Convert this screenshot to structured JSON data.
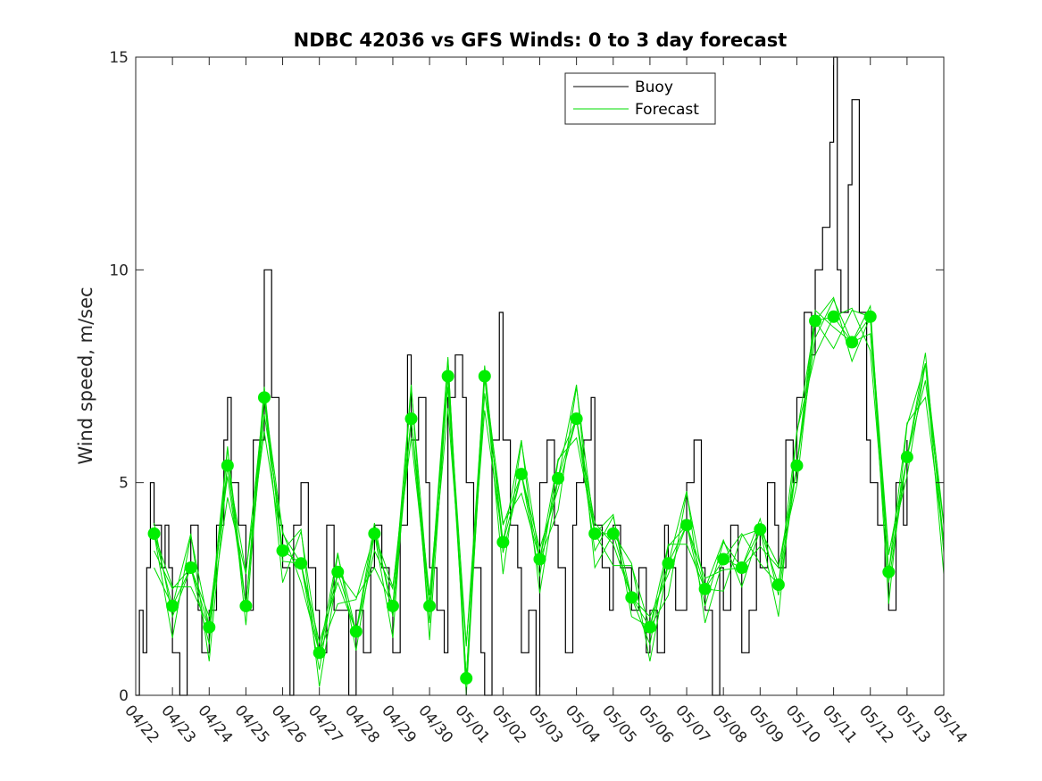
{
  "chart_data": {
    "type": "line",
    "title": "NDBC 42036 vs GFS Winds: 0 to 3 day forecast",
    "xlabel": "",
    "ylabel": "Wind speed, m/sec",
    "ylim": [
      0,
      15
    ],
    "xlim_days": [
      0,
      22
    ],
    "yticks": [
      0,
      5,
      10,
      15
    ],
    "x_tick_labels": [
      "04/22",
      "04/23",
      "04/24",
      "04/25",
      "04/26",
      "04/27",
      "04/28",
      "04/29",
      "04/30",
      "05/01",
      "05/02",
      "05/03",
      "05/04",
      "05/05",
      "05/06",
      "05/07",
      "05/08",
      "05/09",
      "05/10",
      "05/11",
      "05/12",
      "05/13",
      "05/14"
    ],
    "legend": {
      "position": "top-right",
      "entries": [
        "Buoy",
        "Forecast"
      ]
    },
    "colors": {
      "buoy": "#000000",
      "forecast": "#00dd00",
      "marker": "#00ee00",
      "axis": "#262626"
    },
    "series": [
      {
        "name": "Buoy",
        "x_days": [
          0,
          0.1,
          0.2,
          0.3,
          0.4,
          0.5,
          0.6,
          0.7,
          0.8,
          0.9,
          1.0,
          1.2,
          1.4,
          1.5,
          1.7,
          1.8,
          2.0,
          2.2,
          2.4,
          2.5,
          2.6,
          2.8,
          3.0,
          3.2,
          3.5,
          3.7,
          3.9,
          4.0,
          4.2,
          4.3,
          4.5,
          4.7,
          4.9,
          5.0,
          5.2,
          5.4,
          5.6,
          5.8,
          6.0,
          6.2,
          6.4,
          6.5,
          6.7,
          6.9,
          7.0,
          7.2,
          7.4,
          7.5,
          7.7,
          7.9,
          8.0,
          8.2,
          8.4,
          8.5,
          8.7,
          8.9,
          9.0,
          9.2,
          9.4,
          9.5,
          9.7,
          9.9,
          10.0,
          10.2,
          10.4,
          10.5,
          10.7,
          10.9,
          11.0,
          11.2,
          11.4,
          11.5,
          11.7,
          11.9,
          12.0,
          12.2,
          12.4,
          12.5,
          12.7,
          12.9,
          13.0,
          13.2,
          13.4,
          13.5,
          13.7,
          13.9,
          14.0,
          14.2,
          14.4,
          14.5,
          14.7,
          14.9,
          15.0,
          15.2,
          15.4,
          15.5,
          15.7,
          15.9,
          16.0,
          16.2,
          16.4,
          16.5,
          16.7,
          16.9,
          17.0,
          17.2,
          17.4,
          17.5,
          17.7,
          17.9,
          18.0,
          18.2,
          18.4,
          18.5,
          18.7,
          18.9,
          19.0,
          19.1,
          19.2,
          19.4,
          19.5,
          19.7,
          19.9,
          20.0,
          20.2,
          20.4,
          20.5,
          20.7,
          20.9,
          21.0
        ],
        "values": [
          0,
          2,
          1,
          3,
          5,
          4,
          4,
          3,
          4,
          3,
          1,
          0,
          3,
          4,
          2,
          1,
          2,
          4,
          6,
          7,
          5,
          4,
          2,
          6,
          10,
          7,
          4,
          3,
          0,
          4,
          5,
          3,
          2,
          1,
          4,
          2,
          2,
          0,
          2,
          1,
          3,
          4,
          3,
          2,
          1,
          4,
          8,
          6,
          7,
          5,
          3,
          2,
          1,
          7,
          8,
          7,
          5,
          3,
          1,
          0,
          6,
          9,
          6,
          4,
          3,
          1,
          2,
          0,
          5,
          6,
          4,
          3,
          1,
          4,
          5,
          6,
          7,
          4,
          3,
          2,
          4,
          3,
          3,
          2,
          3,
          1,
          2,
          1,
          4,
          3,
          2,
          2,
          5,
          6,
          3,
          2,
          0,
          3,
          2,
          4,
          3,
          1,
          2,
          4,
          3,
          5,
          4,
          3,
          6,
          5,
          7,
          9,
          8,
          10,
          11,
          13,
          15,
          10,
          9,
          12,
          14,
          9,
          6,
          5,
          4,
          3,
          2,
          5,
          4,
          6
        ]
      },
      {
        "name": "Forecast",
        "x_days": [
          0.5,
          1.0,
          1.5,
          2.0,
          2.5,
          3.0,
          3.5,
          4.0,
          4.5,
          5.0,
          5.5,
          6.0,
          6.5,
          7.0,
          7.5,
          8.0,
          8.5,
          9.0,
          9.5,
          10.0,
          10.5,
          11.0,
          11.5,
          12.0,
          12.5,
          13.0,
          13.5,
          14.0,
          14.5,
          15.0,
          15.5,
          16.0,
          16.5,
          17.0,
          17.5,
          18.0,
          18.5,
          19.0,
          19.5,
          20.0,
          20.5,
          21.0,
          21.5,
          22.0
        ],
        "values": [
          3.8,
          2.1,
          3.0,
          1.6,
          5.4,
          2.1,
          7.0,
          3.4,
          3.1,
          1.0,
          2.9,
          1.5,
          3.8,
          2.1,
          6.5,
          2.1,
          7.5,
          0.4,
          7.5,
          3.6,
          5.2,
          3.2,
          5.1,
          6.5,
          3.8,
          3.8,
          2.3,
          1.6,
          3.1,
          4.0,
          2.5,
          3.2,
          3.0,
          3.9,
          2.6,
          5.4,
          8.8,
          8.9,
          8.3,
          8.9,
          2.9,
          5.6,
          7.8,
          3.6
        ]
      },
      {
        "name": "Forecast markers",
        "x_days": [
          0.5,
          1.0,
          1.5,
          2.0,
          2.5,
          3.0,
          3.5,
          4.0,
          4.5,
          5.0,
          5.5,
          6.0,
          6.5,
          7.0,
          7.5,
          8.0,
          8.5,
          9.0,
          9.5,
          10.0,
          10.5,
          11.0,
          11.5,
          12.0,
          12.5,
          13.0,
          13.5,
          14.0,
          14.5,
          15.0,
          15.5,
          16.0,
          16.5,
          17.0,
          17.5,
          18.0,
          18.5,
          19.0,
          19.5,
          20.0,
          20.5,
          21.0
        ],
        "values": [
          3.8,
          2.1,
          3.0,
          1.6,
          5.4,
          2.1,
          7.0,
          3.4,
          3.1,
          1.0,
          2.9,
          1.5,
          3.8,
          2.1,
          6.5,
          2.1,
          7.5,
          0.4,
          7.5,
          3.6,
          5.2,
          3.2,
          5.1,
          6.5,
          3.8,
          3.8,
          2.3,
          1.6,
          3.1,
          4.0,
          2.5,
          3.2,
          3.0,
          3.9,
          2.6,
          5.4,
          8.8,
          8.9,
          8.3,
          8.9,
          2.9,
          5.6
        ]
      }
    ]
  }
}
